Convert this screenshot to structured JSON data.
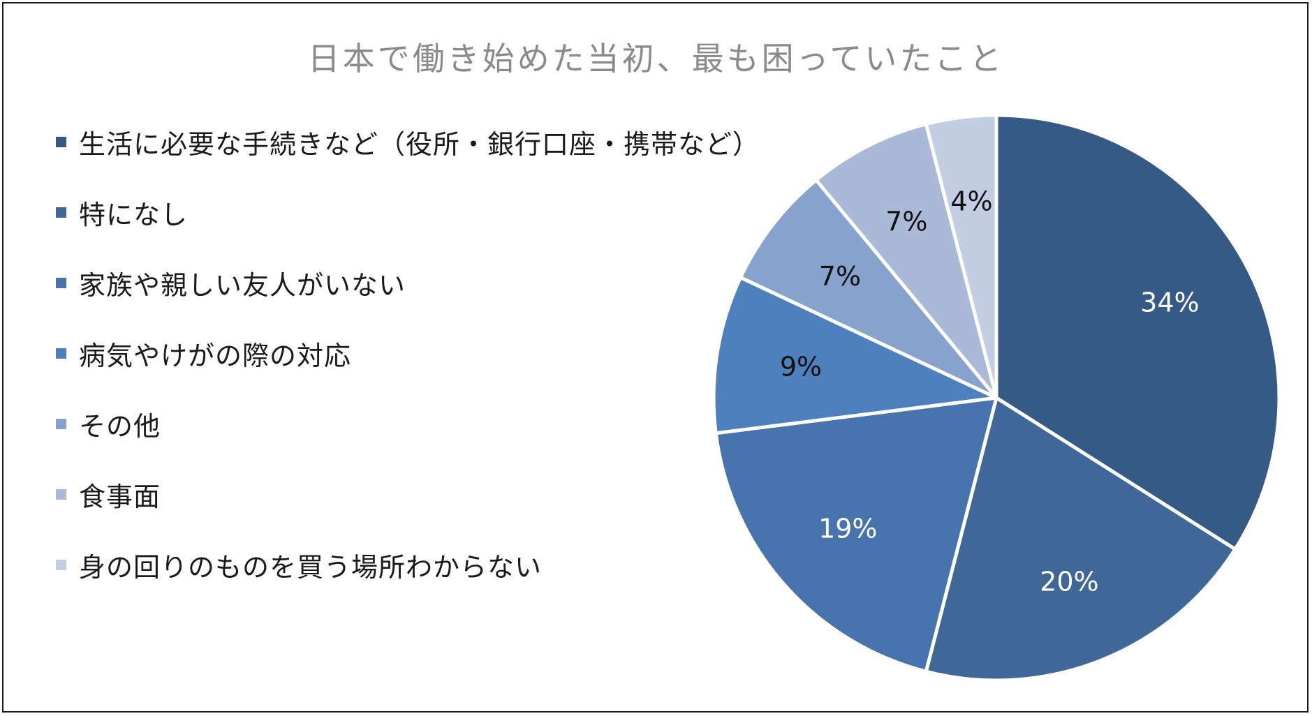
{
  "chart_data": {
    "type": "pie",
    "title": "日本で働き始めた当初、最も困っていたこと",
    "legend_position": "left",
    "categories": [
      "生活に必要な手続きなど（役所・銀行口座・携帯など）",
      "特になし",
      "家族や親しい友人がいない",
      "病気やけがの際の対応",
      "その他",
      "食事面",
      "身の回りのものを買う場所わからない"
    ],
    "values": [
      34,
      20,
      19,
      9,
      7,
      7,
      4
    ],
    "data_labels": [
      "34%",
      "20%",
      "19%",
      "9%",
      "7%",
      "7%",
      "4%"
    ],
    "colors": [
      "#355a85",
      "#3f6899",
      "#4874ad",
      "#4e80bd",
      "#87a2cc",
      "#abb9d8",
      "#c3cde3"
    ],
    "label_colors": [
      "#ffffff",
      "#ffffff",
      "#ffffff",
      "#111111",
      "#111111",
      "#111111",
      "#111111"
    ]
  }
}
